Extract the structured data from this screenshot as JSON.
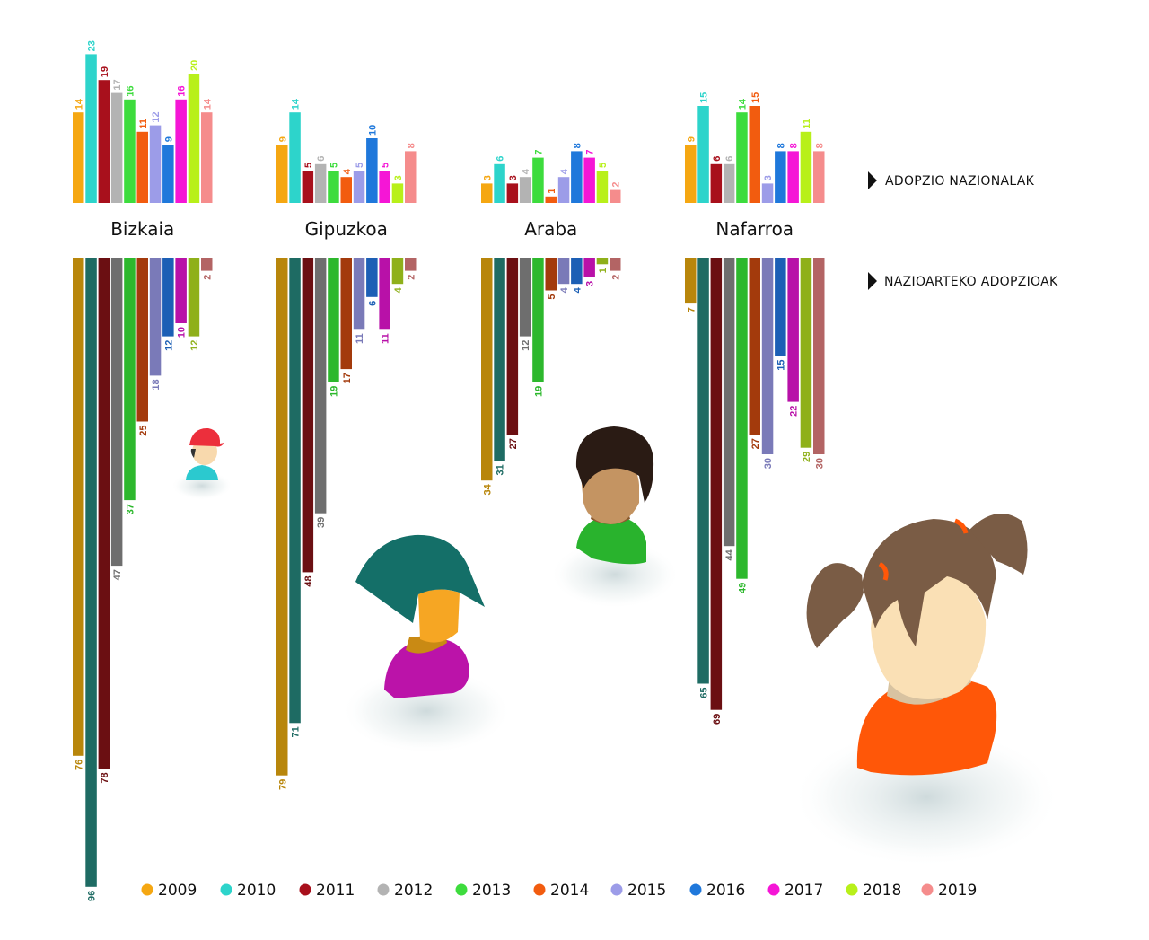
{
  "chart_data": {
    "type": "bar",
    "layout": "mirrored",
    "regions": [
      "Bizkaia",
      "Gipuzkoa",
      "Araba",
      "Nafarroa"
    ],
    "years": [
      "2009",
      "2010",
      "2011",
      "2012",
      "2013",
      "2014",
      "2015",
      "2016",
      "2017",
      "2018",
      "2019"
    ],
    "sections": {
      "national": {
        "label": "ADOPZIO NAZIONALAK",
        "direction": "up"
      },
      "international": {
        "label": "NAZIOARTEKO ADOPZIOAK",
        "direction": "down"
      }
    },
    "colors": {
      "2009": "#F5A712",
      "2010": "#2DD4CB",
      "2011": "#A8101C",
      "2012": "#B3B3B3",
      "2013": "#3DDC3D",
      "2014": "#F25C0F",
      "2015": "#9C9CE8",
      "2016": "#1F78DB",
      "2017": "#F516D6",
      "2018": "#B8F01A",
      "2019": "#F58C8C"
    },
    "colors_international": {
      "2009": "#B8860B",
      "2010": "#1E6B63",
      "2011": "#6B0F12",
      "2012": "#6E6E6E",
      "2013": "#2DB82D",
      "2014": "#A33A0C",
      "2015": "#7A7AB8",
      "2016": "#1C5FB5",
      "2017": "#B811A8",
      "2018": "#8FB01A",
      "2019": "#B36464"
    },
    "national": {
      "Bizkaia": [
        14,
        23,
        19,
        17,
        16,
        11,
        12,
        9,
        16,
        20,
        14
      ],
      "Gipuzkoa": [
        9,
        14,
        5,
        6,
        5,
        4,
        5,
        10,
        5,
        3,
        8
      ],
      "Araba": [
        3,
        6,
        3,
        4,
        7,
        1,
        4,
        8,
        7,
        5,
        2
      ],
      "Nafarroa": [
        9,
        15,
        6,
        6,
        14,
        15,
        3,
        8,
        8,
        11,
        8
      ]
    },
    "international": {
      "Bizkaia": [
        76,
        96,
        78,
        47,
        37,
        25,
        18,
        12,
        10,
        12,
        2
      ],
      "Gipuzkoa": [
        79,
        71,
        48,
        39,
        19,
        17,
        11,
        6,
        11,
        4,
        2
      ],
      "Araba": [
        34,
        31,
        27,
        12,
        19,
        5,
        4,
        4,
        3,
        1,
        2
      ],
      "Nafarroa": [
        7,
        65,
        69,
        44,
        49,
        27,
        30,
        15,
        22,
        29,
        30
      ]
    }
  }
}
